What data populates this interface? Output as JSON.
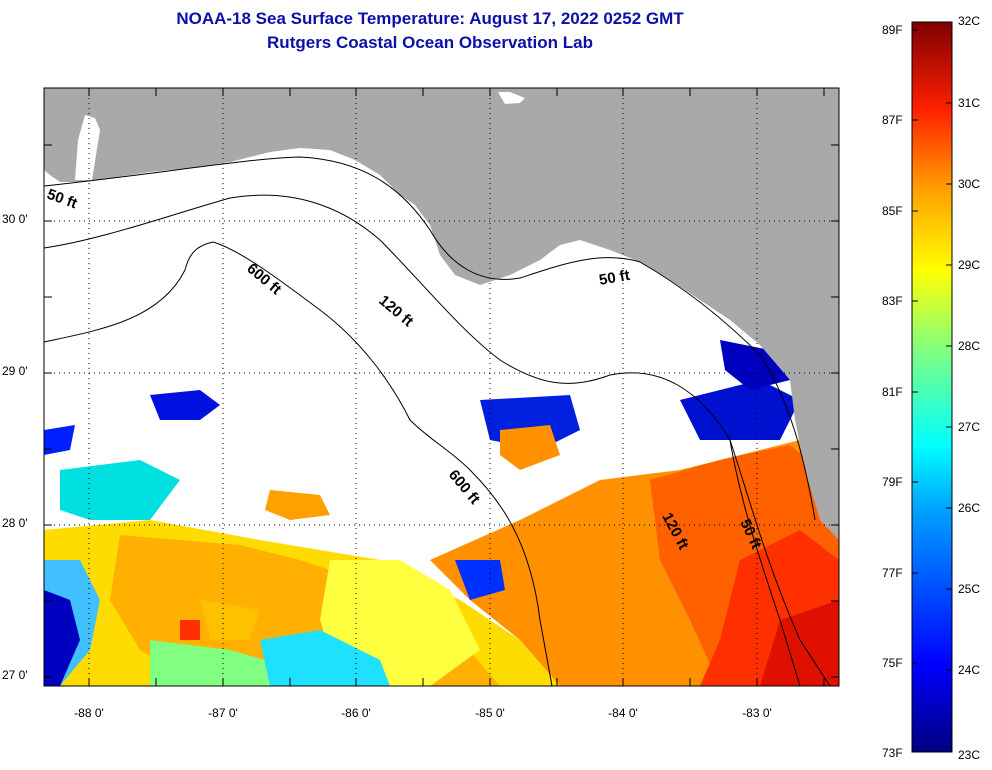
{
  "title": {
    "line1": "NOAA-18 Sea Surface Temperature:  August 17, 2022 0252 GMT",
    "line2": "Rutgers Coastal Ocean Observation Lab"
  },
  "axes": {
    "y_labels": [
      "30 0'",
      "29 0'",
      "28 0'",
      "27 0'"
    ],
    "x_labels": [
      "-88 0'",
      "-87 0'",
      "-86 0'",
      "-85 0'",
      "-84 0'",
      "-83 0'"
    ]
  },
  "contours": {
    "fifty_west": "50 ft",
    "six_hundred_north": "600 ft",
    "one_twenty_north": "120 ft",
    "fifty_east": "50 ft",
    "six_hundred_south": "600 ft",
    "one_twenty_south": "120 ft",
    "fifty_south": "50 ft"
  },
  "colorbar": {
    "f_labels": [
      "89F",
      "87F",
      "85F",
      "83F",
      "81F",
      "79F",
      "77F",
      "75F",
      "73F"
    ],
    "c_labels": [
      "32C",
      "31C",
      "30C",
      "29C",
      "28C",
      "27C",
      "26C",
      "25C",
      "24C",
      "23C"
    ],
    "colors": [
      "#800000",
      "#ff0000",
      "#ff8000",
      "#ffff00",
      "#80ff80",
      "#00ffff",
      "#0080ff",
      "#0000ff",
      "#000080"
    ]
  },
  "colors": {
    "land": "#a9a9a9",
    "cloud": "#ffffff",
    "title": "#0a10a8"
  }
}
